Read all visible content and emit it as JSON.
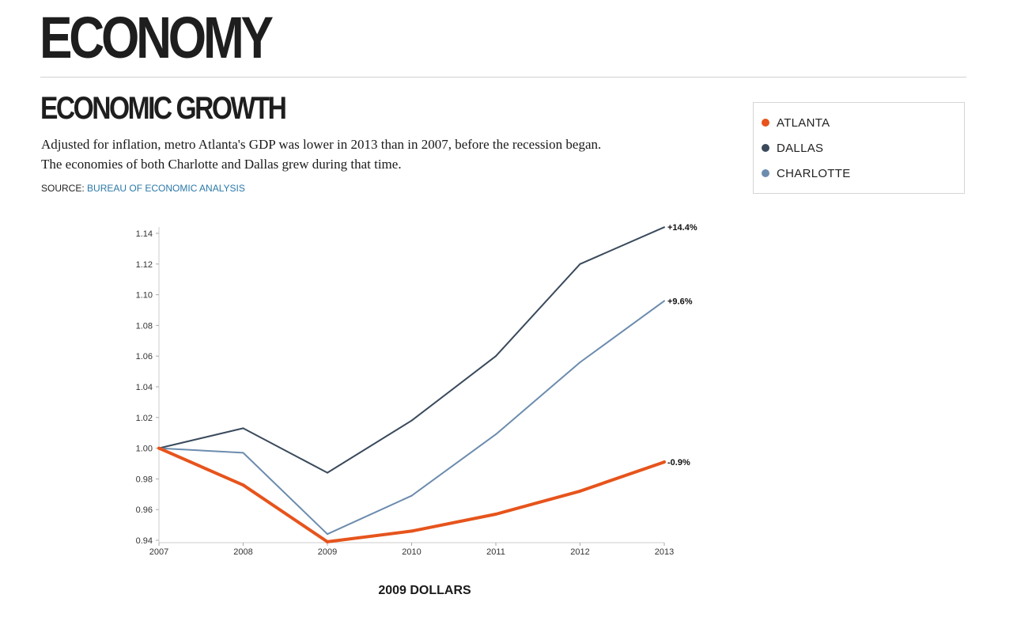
{
  "header": {
    "title": "ECONOMY"
  },
  "section": {
    "title": "ECONOMIC GROWTH",
    "description_line1": "Adjusted for inflation, metro Atlanta's GDP was lower in 2013 than in 2007, before the recession began.",
    "description_line2": "The economies of both Charlotte and Dallas grew during that time.",
    "source_prefix": "SOURCE:",
    "source_link": "BUREAU OF ECONOMIC ANALYSIS"
  },
  "colors": {
    "atlanta": "#e6541c",
    "dallas": "#3a4a5c",
    "charlotte": "#6c8cae",
    "link": "#2b79a8"
  },
  "legend": {
    "items": [
      {
        "label": "ATLANTA",
        "color": "#e6541c"
      },
      {
        "label": "DALLAS",
        "color": "#3a4a5c"
      },
      {
        "label": "CHARLOTTE",
        "color": "#6c8cae"
      }
    ]
  },
  "chart_data": {
    "type": "line",
    "title": "",
    "xlabel": "2009 DOLLARS",
    "ylabel": "",
    "x": [
      "2007",
      "2008",
      "2009",
      "2010",
      "2011",
      "2012",
      "2013"
    ],
    "ylim": [
      0.94,
      1.14
    ],
    "yticks": [
      "0.94",
      "0.96",
      "0.98",
      "1.00",
      "1.02",
      "1.04",
      "1.06",
      "1.08",
      "1.10",
      "1.12",
      "1.14"
    ],
    "grid": false,
    "legend_position": "top-right",
    "series": [
      {
        "name": "DALLAS",
        "color": "#3a4a5c",
        "values": [
          1.0,
          1.013,
          0.984,
          1.018,
          1.06,
          1.12,
          1.144
        ],
        "end_label": "+14.4%"
      },
      {
        "name": "CHARLOTTE",
        "color": "#6c8cae",
        "values": [
          1.0,
          0.997,
          0.944,
          0.969,
          1.009,
          1.056,
          1.096
        ],
        "end_label": "+9.6%"
      },
      {
        "name": "ATLANTA",
        "color": "#e6541c",
        "values": [
          1.0,
          0.976,
          0.939,
          0.946,
          0.957,
          0.972,
          0.991
        ],
        "end_label": "-0.9%"
      }
    ]
  }
}
